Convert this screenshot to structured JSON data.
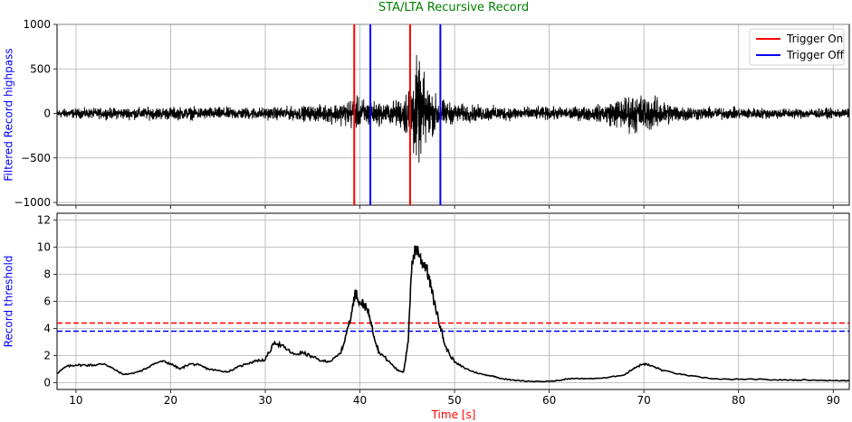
{
  "chart_data": [
    {
      "type": "line",
      "title": "STA/LTA Recursive Record",
      "title_color": "#008000",
      "ylabel": "Filtered Record highpass",
      "ylabel_color": "#0000ff",
      "xlim": [
        8,
        91.7
      ],
      "ylim": [
        -1030,
        1000
      ],
      "yticks": [
        -1000,
        -500,
        0,
        500,
        1000
      ],
      "yticklabels": [
        "−1000",
        "−500",
        "0",
        "500",
        "1000"
      ],
      "xticks": [
        10,
        20,
        30,
        40,
        50,
        60,
        70,
        80,
        90
      ],
      "grid": true,
      "series": [
        {
          "style": "seismic-trace",
          "color": "#000000",
          "envelope": {
            "t": [
              8,
              10,
              15,
              20,
              25,
              30,
              33,
              36,
              38,
              39.3,
              40,
              41.5,
              43,
              44.5,
              45.3,
              46,
              46.8,
              47.5,
              48.5,
              50,
              53,
              58,
              62,
              65,
              67,
              69,
              71,
              73,
              76,
              80,
              85,
              91.7
            ],
            "amplitude": [
              75,
              75,
              90,
              100,
              95,
              95,
              105,
              130,
              170,
              250,
              240,
              190,
              160,
              240,
              520,
              820,
              580,
              360,
              220,
              150,
              120,
              100,
              100,
              120,
              220,
              310,
              260,
              150,
              100,
              90,
              80,
              75
            ]
          }
        }
      ],
      "vlines": [
        {
          "x": 39.4,
          "color": "#ff0000"
        },
        {
          "x": 41.1,
          "color": "#0000ff"
        },
        {
          "x": 45.3,
          "color": "#ff0000"
        },
        {
          "x": 48.5,
          "color": "#0000ff"
        }
      ],
      "legend": {
        "placement": "top-right",
        "entries": [
          {
            "label": "Trigger On",
            "color": "#ff0000"
          },
          {
            "label": "Trigger Off",
            "color": "#0000ff"
          }
        ]
      }
    },
    {
      "type": "line",
      "ylabel": "Record threshold",
      "ylabel_color": "#0000ff",
      "xlabel": "Time [s]",
      "xlabel_color": "#ff0000",
      "xlim": [
        8,
        91.7
      ],
      "ylim": [
        -0.5,
        12.5
      ],
      "yticks": [
        0,
        2,
        4,
        6,
        8,
        10,
        12
      ],
      "yticklabels": [
        "0",
        "2",
        "4",
        "6",
        "8",
        "10",
        "12"
      ],
      "xticks": [
        10,
        20,
        30,
        40,
        50,
        60,
        70,
        80,
        90
      ],
      "xticklabels": [
        "10",
        "20",
        "30",
        "40",
        "50",
        "60",
        "70",
        "80",
        "90"
      ],
      "grid": true,
      "series": [
        {
          "color": "#000000",
          "x": [
            8,
            9,
            10,
            11,
            12,
            13,
            14,
            15,
            16,
            17,
            18,
            19,
            20,
            21,
            22,
            23,
            24,
            25,
            26,
            27,
            28,
            29,
            30,
            31,
            32,
            33,
            34,
            35,
            36,
            37,
            38,
            38.8,
            39.2,
            39.5,
            40,
            40.5,
            41,
            41.5,
            42,
            43,
            44,
            44.6,
            45.1,
            45.5,
            46,
            46.5,
            47,
            47.5,
            48,
            48.5,
            49,
            50,
            51,
            52,
            53,
            54,
            55,
            56,
            58,
            60,
            61,
            62,
            64,
            66,
            68,
            69,
            70,
            71,
            72,
            74,
            76,
            78,
            80,
            82,
            84,
            86,
            88,
            90,
            91.7
          ],
          "values": [
            0.7,
            1.2,
            1.3,
            1.3,
            1.3,
            1.4,
            1.0,
            0.6,
            0.7,
            0.9,
            1.3,
            1.6,
            1.4,
            1.0,
            1.4,
            1.3,
            1.0,
            0.9,
            0.8,
            1.1,
            1.4,
            1.6,
            1.7,
            3.0,
            2.6,
            2.1,
            2.2,
            1.9,
            1.6,
            1.6,
            2.2,
            4.2,
            5.5,
            6.7,
            6.0,
            5.7,
            5.0,
            3.4,
            2.3,
            1.6,
            0.9,
            0.8,
            3.0,
            9.0,
            10.0,
            9.0,
            8.6,
            7.0,
            5.5,
            4.2,
            2.7,
            1.5,
            1.1,
            0.8,
            0.6,
            0.5,
            0.3,
            0.2,
            0.1,
            0.1,
            0.15,
            0.3,
            0.3,
            0.35,
            0.6,
            1.1,
            1.4,
            1.2,
            0.9,
            0.6,
            0.4,
            0.25,
            0.25,
            0.25,
            0.2,
            0.2,
            0.2,
            0.15,
            0.15
          ]
        }
      ],
      "hlines": [
        {
          "y": 4.4,
          "color": "#ff0000",
          "style": "dashed"
        },
        {
          "y": 3.8,
          "color": "#0000ff",
          "style": "dashed"
        }
      ]
    }
  ]
}
